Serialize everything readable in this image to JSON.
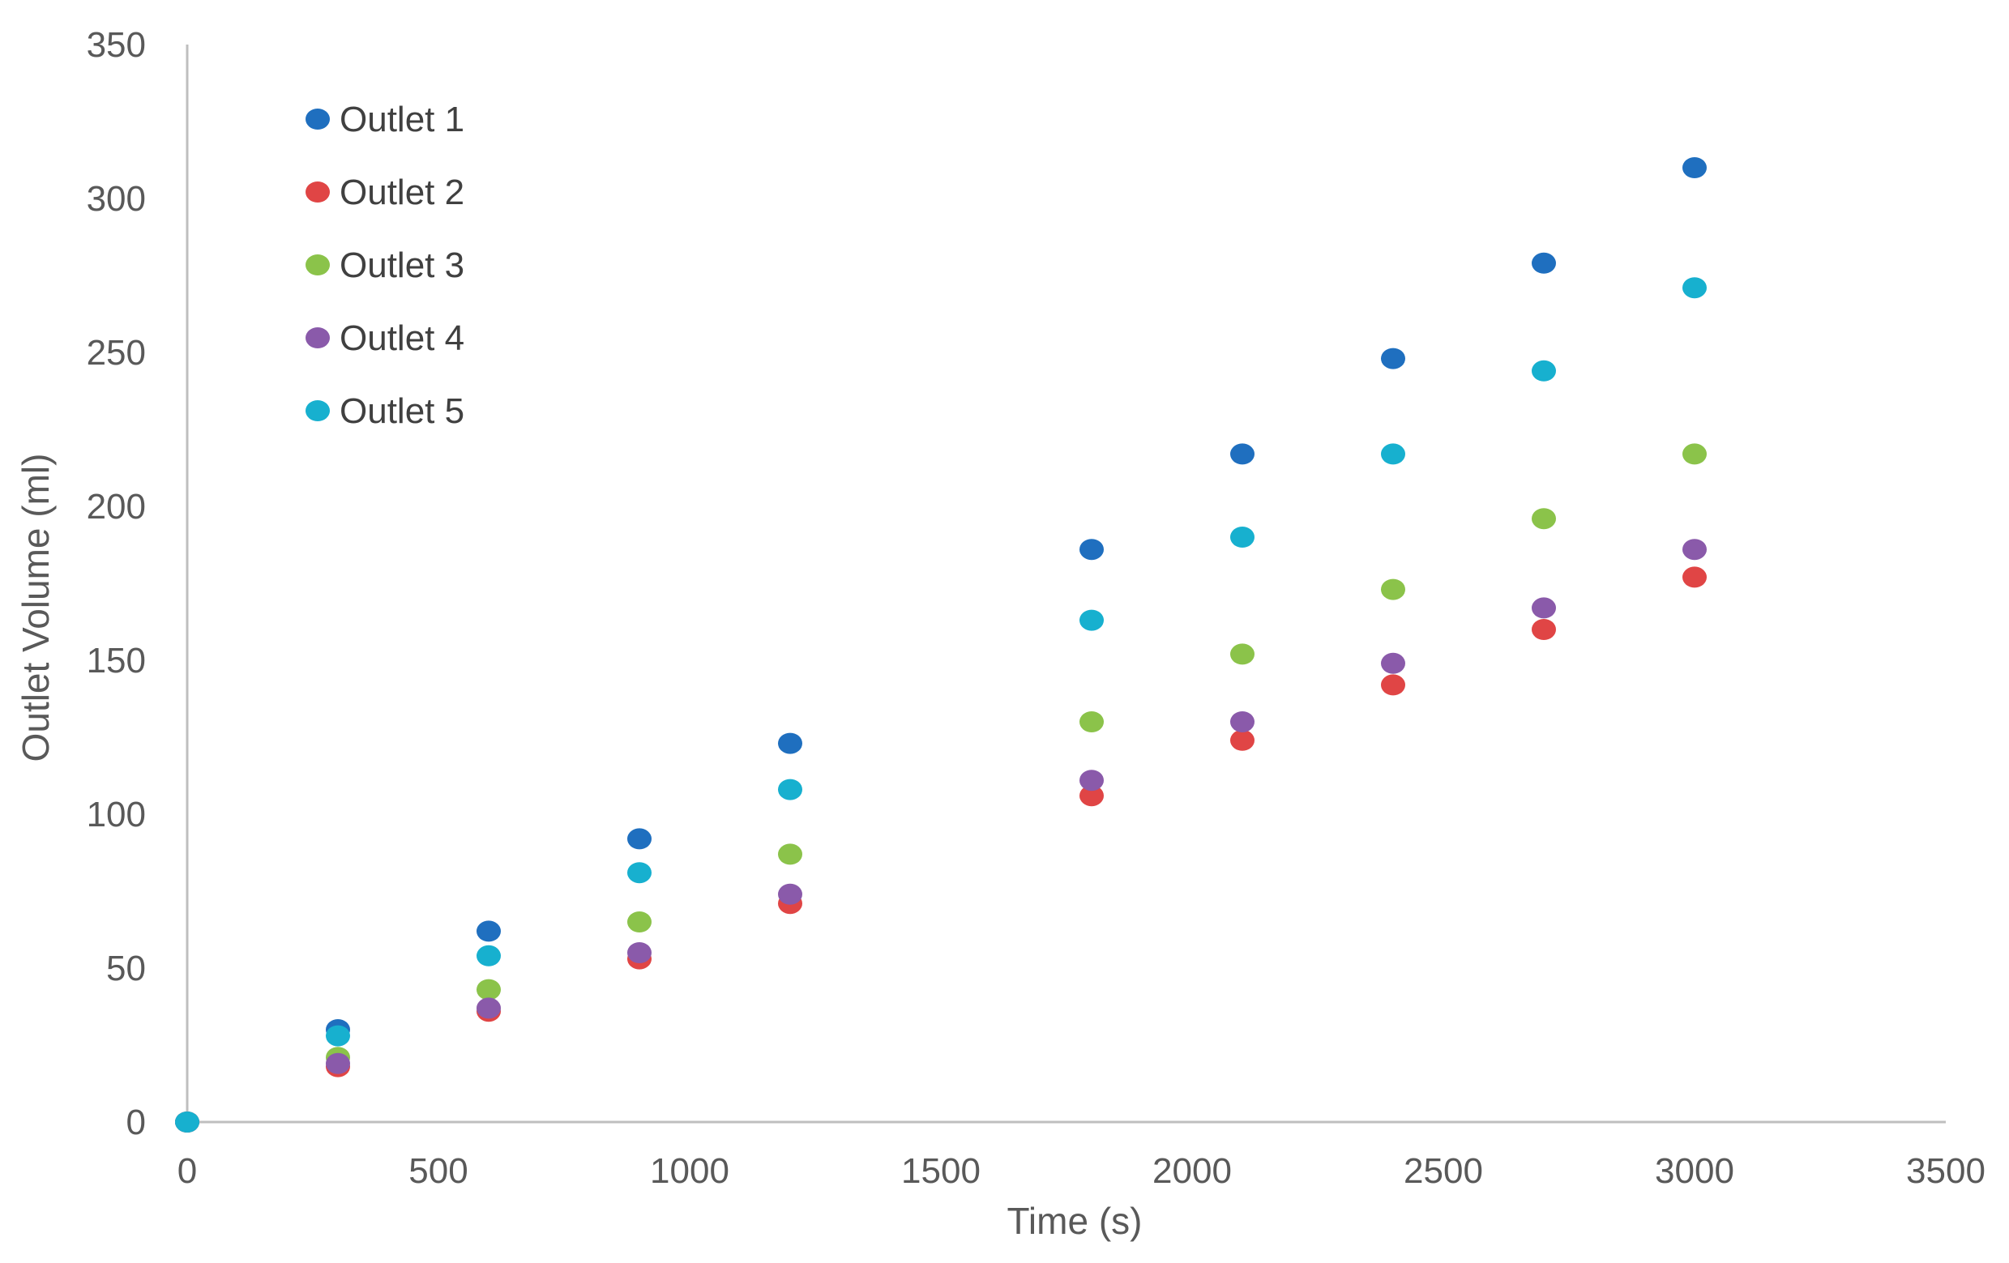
{
  "chart_data": {
    "type": "scatter",
    "title": "",
    "xlabel": "Time (s)",
    "ylabel": "Outlet Volume (ml)",
    "xlim": [
      0,
      3500
    ],
    "ylim": [
      0,
      350
    ],
    "xticks": [
      0,
      500,
      1000,
      1500,
      2000,
      2500,
      3000,
      3500
    ],
    "yticks": [
      0,
      50,
      100,
      150,
      200,
      250,
      300,
      350
    ],
    "xtick_labels": [
      "0",
      "500",
      "1000",
      "1500",
      "2000",
      "2500",
      "3000",
      "3500"
    ],
    "ytick_labels": [
      "0",
      "50",
      "100",
      "150",
      "200",
      "250",
      "300",
      "350"
    ],
    "grid": false,
    "legend_position": "top-left",
    "x": [
      0,
      300,
      600,
      900,
      1200,
      1800,
      2100,
      2400,
      2700,
      3000
    ],
    "series": [
      {
        "name": "Outlet 1",
        "color": "#1f6fbf",
        "values": [
          0,
          30,
          62,
          92,
          123,
          186,
          217,
          248,
          279,
          310
        ]
      },
      {
        "name": "Outlet 2",
        "color": "#e04545",
        "values": [
          0,
          18,
          36,
          53,
          71,
          106,
          124,
          142,
          160,
          177
        ]
      },
      {
        "name": "Outlet 3",
        "color": "#8bc34a",
        "values": [
          0,
          21,
          43,
          65,
          87,
          130,
          152,
          173,
          196,
          217
        ]
      },
      {
        "name": "Outlet 4",
        "color": "#8a5aaa",
        "values": [
          0,
          19,
          37,
          55,
          74,
          111,
          130,
          149,
          167,
          186
        ]
      },
      {
        "name": "Outlet 5",
        "color": "#17b0cf",
        "values": [
          0,
          28,
          54,
          81,
          108,
          163,
          190,
          217,
          244,
          271
        ]
      }
    ]
  }
}
